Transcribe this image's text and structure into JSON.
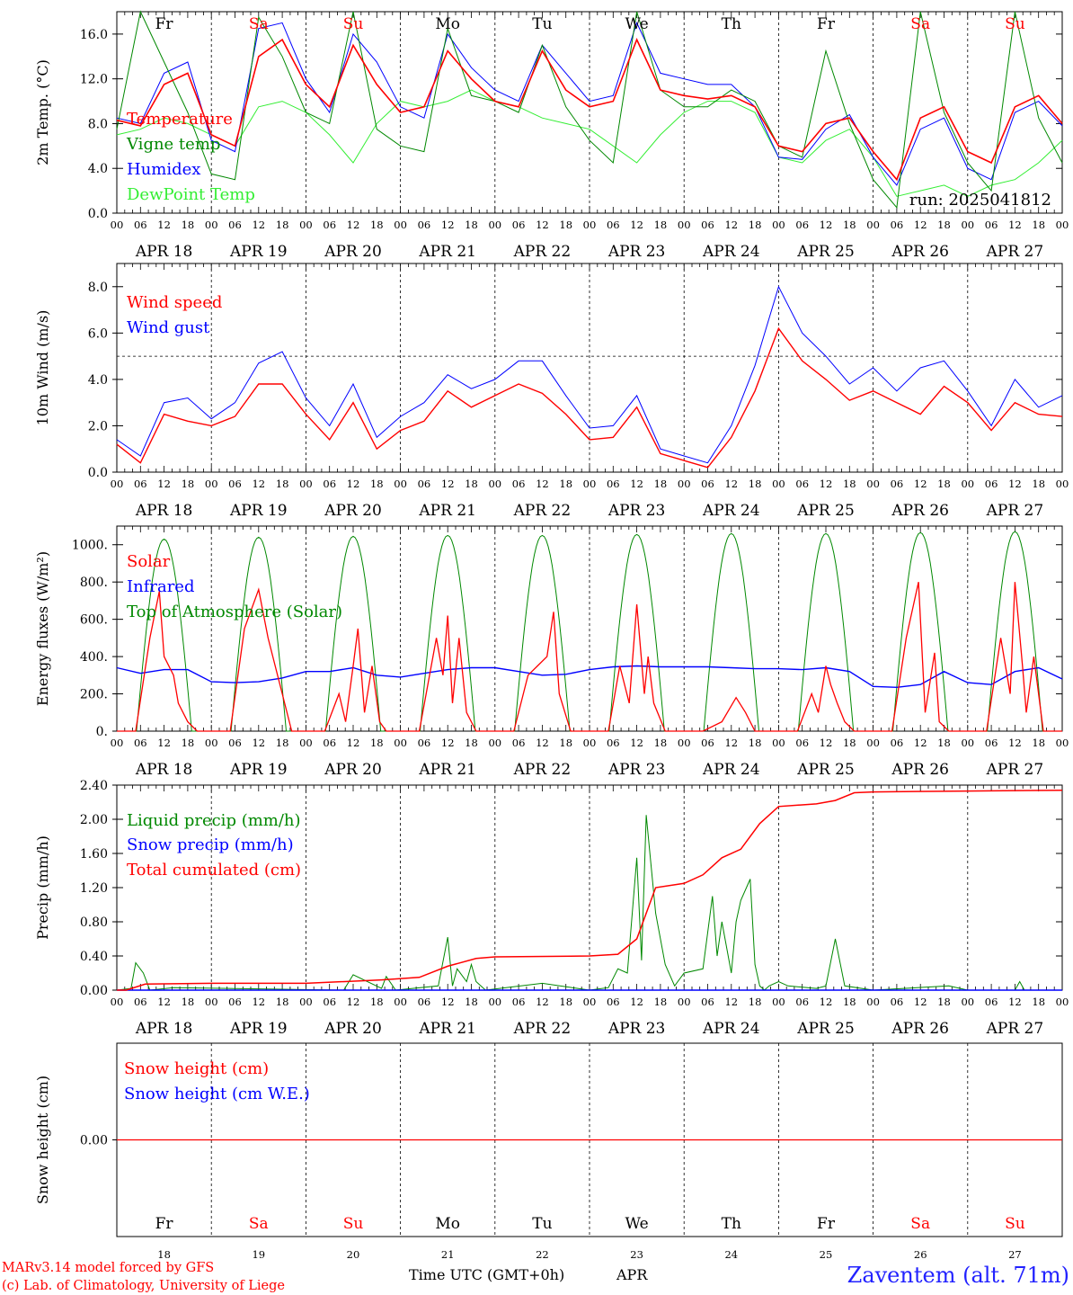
{
  "colors": {
    "red": "#ff0000",
    "green": "#008800",
    "blue": "#0000ff",
    "lightgreen": "#33ee33",
    "black": "#000000"
  },
  "hours": [
    "00",
    "06",
    "12",
    "18"
  ],
  "end_hour": "00",
  "dates": [
    "APR 18",
    "APR 19",
    "APR 20",
    "APR 21",
    "APR 22",
    "APR 23",
    "APR 24",
    "APR 25",
    "APR 26",
    "APR 27"
  ],
  "days": [
    {
      "abbr": "Fr",
      "num": "18",
      "weekend": false
    },
    {
      "abbr": "Sa",
      "num": "19",
      "weekend": true
    },
    {
      "abbr": "Su",
      "num": "20",
      "weekend": true
    },
    {
      "abbr": "Mo",
      "num": "21",
      "weekend": false
    },
    {
      "abbr": "Tu",
      "num": "22",
      "weekend": false
    },
    {
      "abbr": "We",
      "num": "23",
      "weekend": false
    },
    {
      "abbr": "Th",
      "num": "24",
      "weekend": false
    },
    {
      "abbr": "Fr",
      "num": "25",
      "weekend": false
    },
    {
      "abbr": "Sa",
      "num": "26",
      "weekend": true
    },
    {
      "abbr": "Su",
      "num": "27",
      "weekend": true
    }
  ],
  "footer": {
    "model": "MARv3.14 model forced by GFS",
    "lab": "(c) Lab. of Climatology, University of Liege",
    "time_label": "Time UTC (GMT+0h)",
    "month": "APR",
    "station": "Zaventem (alt. 71m)"
  },
  "chart_data": [
    {
      "type": "line",
      "ylabel": "2m Temp. (°C)",
      "ylim": [
        0,
        18
      ],
      "yticks": [
        "0.0",
        "4.0",
        "8.0",
        "12.0",
        "16.0"
      ],
      "yticks_values": [
        0,
        4,
        8,
        12,
        16
      ],
      "run_label": "run: 2025041812",
      "x_days": [
        0,
        0.25,
        0.5,
        0.75,
        1,
        1.25,
        1.5,
        1.75,
        2,
        2.25,
        2.5,
        2.75,
        3,
        3.25,
        3.5,
        3.75,
        4,
        4.25,
        4.5,
        4.75,
        5,
        5.25,
        5.5,
        5.75,
        6,
        6.25,
        6.5,
        6.75,
        7,
        7.25,
        7.5,
        7.75,
        8,
        8.25,
        8.5,
        8.75,
        9,
        9.25,
        9.5,
        9.75,
        10
      ],
      "series": [
        {
          "name": "Temperature",
          "color": "#ff0000",
          "width": 1.6,
          "values": [
            8.3,
            7.8,
            11.5,
            12.5,
            7.0,
            6.0,
            14.0,
            15.5,
            11.5,
            9.5,
            15.0,
            11.5,
            9.0,
            9.5,
            14.5,
            12.0,
            10.0,
            9.5,
            14.5,
            11.0,
            9.5,
            10.0,
            15.5,
            11.0,
            10.5,
            10.2,
            10.5,
            9.5,
            6.0,
            5.5,
            8.0,
            8.5,
            5.5,
            3.0,
            8.5,
            9.5,
            5.5,
            4.5,
            9.5,
            10.5,
            8.0
          ]
        },
        {
          "name": "Vigne temp",
          "color": "#008800",
          "width": 1.0,
          "values": [
            7.5,
            18.0,
            13.5,
            9.0,
            3.5,
            3.0,
            17.5,
            14.0,
            9.0,
            8.0,
            18.0,
            7.5,
            6.0,
            5.5,
            16.5,
            10.5,
            10.0,
            9.0,
            15.0,
            9.5,
            6.5,
            4.5,
            18.0,
            11.0,
            9.5,
            9.5,
            11.0,
            10.0,
            6.0,
            5.0,
            14.5,
            8.0,
            3.0,
            0.5,
            18.0,
            9.0,
            4.5,
            2.0,
            18.0,
            8.5,
            4.5
          ]
        },
        {
          "name": "Humidex",
          "color": "#0000ff",
          "width": 1.0,
          "values": [
            8.5,
            8.0,
            12.5,
            13.5,
            6.5,
            5.5,
            16.5,
            17.0,
            12.0,
            9.0,
            16.0,
            13.5,
            9.5,
            8.5,
            16.0,
            13.0,
            11.0,
            10.0,
            15.0,
            12.5,
            10.0,
            10.5,
            17.0,
            12.5,
            12.0,
            11.5,
            11.5,
            9.5,
            5.0,
            4.8,
            7.5,
            8.8,
            5.0,
            2.5,
            7.5,
            8.5,
            4.0,
            3.0,
            9.0,
            10.0,
            7.8
          ]
        },
        {
          "name": "DewPoint Temp",
          "color": "#33ee33",
          "width": 1.0,
          "values": [
            7.0,
            7.5,
            8.5,
            8.0,
            7.0,
            6.0,
            9.5,
            10.0,
            9.0,
            7.0,
            4.5,
            8.0,
            10.0,
            9.5,
            10.0,
            11.0,
            10.0,
            9.5,
            8.5,
            8.0,
            7.5,
            6.0,
            4.5,
            7.0,
            9.0,
            10.0,
            10.0,
            9.0,
            5.0,
            4.5,
            6.5,
            7.5,
            5.0,
            1.5,
            2.0,
            2.5,
            1.5,
            2.5,
            3.0,
            4.5,
            6.5
          ]
        }
      ]
    },
    {
      "type": "line",
      "ylabel": "10m Wind (m/s)",
      "ylim": [
        0,
        9
      ],
      "yticks": [
        "0.0",
        "2.0",
        "4.0",
        "6.0",
        "8.0"
      ],
      "yticks_values": [
        0,
        2,
        4,
        6,
        8
      ],
      "reference_line": 5,
      "x_days": [
        0,
        0.25,
        0.5,
        0.75,
        1,
        1.25,
        1.5,
        1.75,
        2,
        2.25,
        2.5,
        2.75,
        3,
        3.25,
        3.5,
        3.75,
        4,
        4.25,
        4.5,
        4.75,
        5,
        5.25,
        5.5,
        5.75,
        6,
        6.25,
        6.5,
        6.75,
        7,
        7.25,
        7.5,
        7.75,
        8,
        8.25,
        8.5,
        8.75,
        9,
        9.25,
        9.5,
        9.75,
        10
      ],
      "series": [
        {
          "name": "Wind speed",
          "color": "#ff0000",
          "width": 1.4,
          "values": [
            1.2,
            0.4,
            2.5,
            2.2,
            2.0,
            2.4,
            3.8,
            3.8,
            2.5,
            1.4,
            3.0,
            1.0,
            1.8,
            2.2,
            3.5,
            2.8,
            3.3,
            3.8,
            3.4,
            2.5,
            1.4,
            1.5,
            2.8,
            0.8,
            0.5,
            0.2,
            1.5,
            3.5,
            6.2,
            4.8,
            4.0,
            3.1,
            3.5,
            3.0,
            2.5,
            3.7,
            3.0,
            1.8,
            3.0,
            2.5,
            2.4
          ]
        },
        {
          "name": "Wind gust",
          "color": "#0000ff",
          "width": 1.0,
          "values": [
            1.4,
            0.7,
            3.0,
            3.2,
            2.3,
            3.0,
            4.7,
            5.2,
            3.2,
            2.0,
            3.8,
            1.5,
            2.4,
            3.0,
            4.2,
            3.6,
            4.0,
            4.8,
            4.8,
            3.3,
            1.9,
            2.0,
            3.3,
            1.0,
            0.7,
            0.4,
            2.0,
            4.6,
            8.0,
            6.0,
            5.0,
            3.8,
            4.5,
            3.5,
            4.5,
            4.8,
            3.5,
            2.0,
            4.0,
            2.8,
            3.3
          ]
        }
      ]
    },
    {
      "type": "line",
      "ylabel": "Energy fluxes (W/m²)",
      "ylim": [
        0,
        1100
      ],
      "yticks": [
        "0.",
        "200.",
        "400.",
        "600.",
        "800.",
        "1000."
      ],
      "yticks_values": [
        0,
        200,
        400,
        600,
        800,
        1000
      ],
      "peak_hour": 12,
      "daylight_start": 5,
      "daylight_end": 19,
      "toa_peaks": [
        1030,
        1040,
        1045,
        1050,
        1050,
        1055,
        1060,
        1060,
        1065,
        1070
      ],
      "solar_peaks": [
        750,
        760,
        550,
        620,
        640,
        680,
        180,
        350,
        800,
        800
      ],
      "solar_x_days": [
        0.2,
        0.35,
        0.45,
        0.5,
        0.6,
        0.65,
        0.75,
        0.85,
        1.2,
        1.35,
        1.5,
        1.6,
        1.75,
        1.85,
        2.2,
        2.35,
        2.42,
        2.5,
        2.55,
        2.62,
        2.7,
        2.78,
        2.85,
        3.2,
        3.38,
        3.45,
        3.5,
        3.55,
        3.62,
        3.7,
        3.8,
        4.2,
        4.35,
        4.45,
        4.55,
        4.62,
        4.68,
        4.8,
        5.2,
        5.32,
        5.42,
        5.5,
        5.58,
        5.62,
        5.68,
        5.8,
        6.2,
        6.4,
        6.55,
        6.65,
        6.75,
        7.2,
        7.35,
        7.42,
        7.5,
        7.55,
        7.62,
        7.7,
        7.8,
        8.2,
        8.35,
        8.48,
        8.55,
        8.65,
        8.7,
        8.8,
        9.2,
        9.35,
        9.45,
        9.5,
        9.58,
        9.62,
        9.7,
        9.8
      ],
      "solar_values": [
        0,
        500,
        750,
        400,
        300,
        150,
        50,
        0,
        0,
        550,
        760,
        500,
        200,
        0,
        0,
        200,
        50,
        350,
        550,
        100,
        350,
        50,
        0,
        0,
        500,
        300,
        620,
        150,
        500,
        100,
        0,
        0,
        300,
        350,
        400,
        640,
        200,
        0,
        0,
        350,
        150,
        680,
        200,
        400,
        150,
        0,
        0,
        50,
        180,
        100,
        0,
        0,
        200,
        100,
        350,
        250,
        150,
        50,
        0,
        0,
        500,
        800,
        100,
        420,
        50,
        0,
        0,
        500,
        200,
        800,
        350,
        100,
        400,
        0
      ],
      "infrared": {
        "color": "#0000ff",
        "values": [
          340,
          310,
          330,
          330,
          265,
          260,
          265,
          285,
          320,
          320,
          340,
          300,
          290,
          310,
          330,
          340,
          340,
          320,
          300,
          305,
          330,
          345,
          350,
          345,
          345,
          345,
          340,
          335,
          335,
          330,
          340,
          320,
          240,
          235,
          250,
          320,
          260,
          250,
          320,
          340,
          280
        ]
      },
      "series": [
        {
          "name": "Solar",
          "color": "#ff0000"
        },
        {
          "name": "Infrared",
          "color": "#0000ff"
        },
        {
          "name": "Top of Atmosphere (Solar)",
          "color": "#008800"
        }
      ]
    },
    {
      "type": "line",
      "ylabel": "Precip (mm/h)",
      "ylim": [
        0,
        2.4
      ],
      "yticks": [
        "0.00",
        "0.40",
        "0.80",
        "1.20",
        "1.60",
        "2.00",
        "2.40"
      ],
      "yticks_values": [
        0,
        0.4,
        0.8,
        1.2,
        1.6,
        2.0,
        2.4
      ],
      "liquid_x_days": [
        0,
        0.15,
        0.2,
        0.28,
        0.35,
        0.6,
        2.4,
        2.5,
        2.8,
        2.85,
        2.95,
        3.4,
        3.5,
        3.55,
        3.6,
        3.7,
        3.75,
        3.8,
        3.9,
        4.5,
        5.0,
        5.2,
        5.3,
        5.4,
        5.5,
        5.55,
        5.6,
        5.7,
        5.8,
        5.9,
        6.0,
        6.2,
        6.3,
        6.35,
        6.4,
        6.5,
        6.55,
        6.6,
        6.7,
        6.75,
        6.8,
        6.85,
        6.9,
        7.0,
        7.1,
        7.4,
        7.5,
        7.6,
        7.7,
        8.0,
        8.8,
        9.0,
        9.5,
        9.55,
        9.6,
        10.0
      ],
      "liquid_values": [
        0,
        0.02,
        0.32,
        0.2,
        0,
        0.03,
        0,
        0.18,
        0.02,
        0.16,
        0,
        0.05,
        0.62,
        0.05,
        0.25,
        0.1,
        0.3,
        0.1,
        0,
        0.08,
        0,
        0.03,
        0.25,
        0.2,
        1.55,
        0.35,
        2.05,
        0.9,
        0.3,
        0.05,
        0.2,
        0.25,
        1.1,
        0.4,
        0.8,
        0.2,
        0.8,
        1.05,
        1.3,
        0.3,
        0.05,
        0,
        0.05,
        0.1,
        0.05,
        0.02,
        0.05,
        0.6,
        0.05,
        0,
        0.05,
        0,
        0,
        0.1,
        0,
        0
      ],
      "cumul_x_days": [
        0,
        0.1,
        0.3,
        1.0,
        2.0,
        2.8,
        3.2,
        3.5,
        3.8,
        4.0,
        5.0,
        5.3,
        5.5,
        5.7,
        6.0,
        6.2,
        6.4,
        6.6,
        6.8,
        7.0,
        7.4,
        7.6,
        7.8,
        8.0,
        9.0,
        10.0
      ],
      "cumul_values": [
        0,
        0,
        0.07,
        0.08,
        0.08,
        0.12,
        0.15,
        0.28,
        0.37,
        0.39,
        0.4,
        0.42,
        0.6,
        1.2,
        1.25,
        1.35,
        1.55,
        1.65,
        1.95,
        2.15,
        2.18,
        2.22,
        2.31,
        2.32,
        2.33,
        2.34
      ],
      "series": [
        {
          "name": "Liquid precip (mm/h)",
          "color": "#008800"
        },
        {
          "name": "Snow precip (mm/h)",
          "color": "#0000ff"
        },
        {
          "name": "Total cumulated (cm)",
          "color": "#ff0000"
        }
      ]
    },
    {
      "type": "line",
      "ylabel": "Snow height (cm)",
      "ylim": [
        -1,
        1
      ],
      "yticks": [
        "0.00"
      ],
      "yticks_values": [
        0
      ],
      "series": [
        {
          "name": "Snow height (cm)",
          "color": "#ff0000",
          "values": [
            0,
            0
          ]
        },
        {
          "name": "Snow height (cm W.E.)",
          "color": "#0000ff",
          "values": [
            0,
            0
          ]
        }
      ]
    }
  ]
}
